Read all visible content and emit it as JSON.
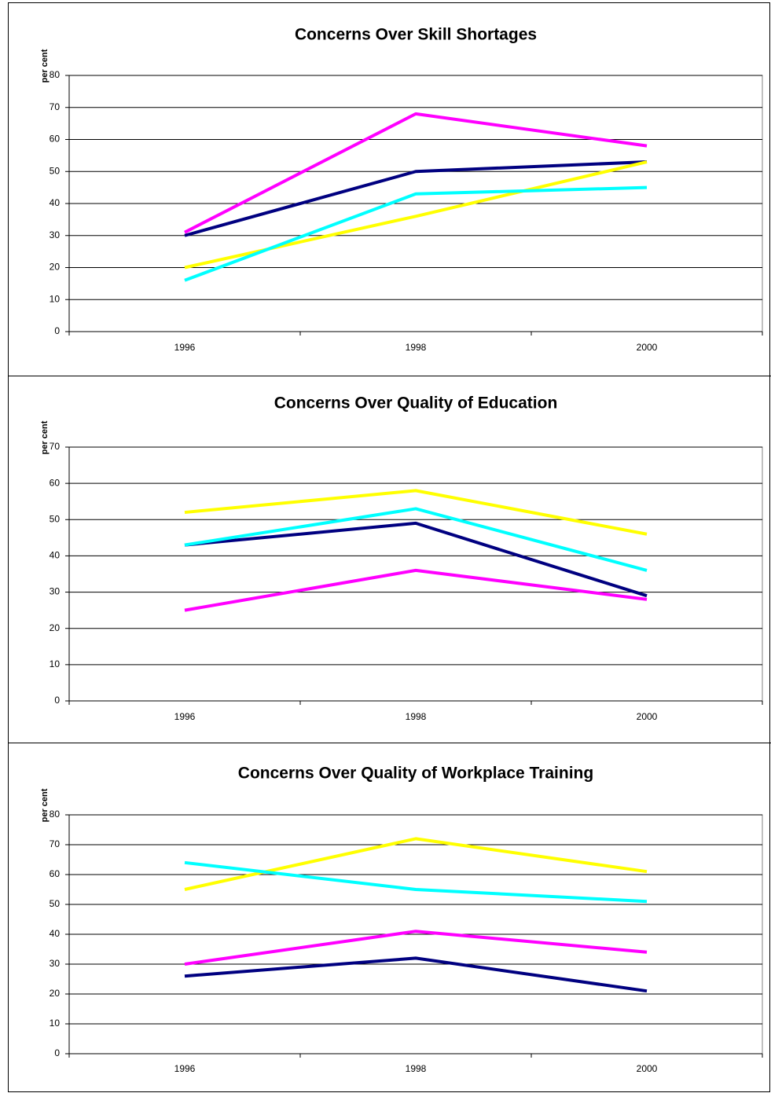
{
  "chart_data": [
    {
      "type": "line",
      "title": "Concerns Over Skill Shortages",
      "y_label": "per cent",
      "categories": [
        "1996",
        "1998",
        "2000"
      ],
      "series": [
        {
          "color": "#000080",
          "values": [
            30,
            50,
            53
          ]
        },
        {
          "color": "#ff00ff",
          "values": [
            31,
            68,
            58
          ]
        },
        {
          "color": "#ffff00",
          "values": [
            20,
            36,
            53
          ]
        },
        {
          "color": "#00ffff",
          "values": [
            16,
            43,
            45
          ]
        }
      ],
      "ylim": [
        0,
        80
      ],
      "yticks": [
        0,
        10,
        20,
        30,
        40,
        50,
        60,
        70,
        80
      ],
      "grid": true
    },
    {
      "type": "line",
      "title": "Concerns Over Quality of Education",
      "y_label": "per cent",
      "categories": [
        "1996",
        "1998",
        "2000"
      ],
      "series": [
        {
          "color": "#000080",
          "values": [
            43,
            49,
            29
          ]
        },
        {
          "color": "#ff00ff",
          "values": [
            25,
            36,
            28
          ]
        },
        {
          "color": "#ffff00",
          "values": [
            52,
            58,
            46
          ]
        },
        {
          "color": "#00ffff",
          "values": [
            43,
            53,
            36
          ]
        }
      ],
      "ylim": [
        0,
        70
      ],
      "yticks": [
        0,
        10,
        20,
        30,
        40,
        50,
        60,
        70
      ],
      "grid": true
    },
    {
      "type": "line",
      "title": "Concerns Over Quality of Workplace Training",
      "y_label": "per cent",
      "categories": [
        "1996",
        "1998",
        "2000"
      ],
      "series": [
        {
          "color": "#000080",
          "values": [
            26,
            32,
            21
          ]
        },
        {
          "color": "#ff00ff",
          "values": [
            30,
            41,
            34
          ]
        },
        {
          "color": "#ffff00",
          "values": [
            55,
            72,
            61
          ]
        },
        {
          "color": "#00ffff",
          "values": [
            64,
            55,
            51
          ]
        }
      ],
      "ylim": [
        0,
        80
      ],
      "yticks": [
        0,
        10,
        20,
        30,
        40,
        50,
        60,
        70,
        80
      ],
      "grid": true
    }
  ]
}
